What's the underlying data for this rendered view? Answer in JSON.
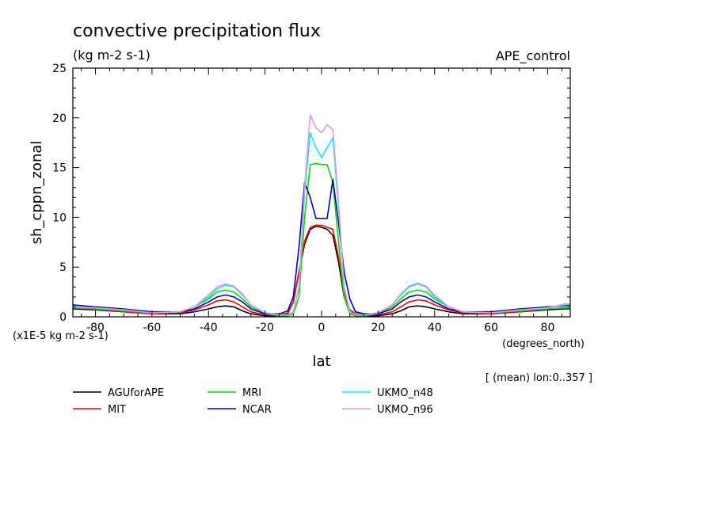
{
  "chart_data": {
    "type": "line",
    "title": "convective precipitation flux",
    "subtitle": "(kg m-2 s-1)",
    "dataset": "APE_control",
    "ylabel": "sh_cppn_zonal",
    "yscale_note": "(x1E-5 kg m-2 s-1)",
    "xlabel": "lat",
    "xunits": "(degrees_north)",
    "footnote": "[ (mean) lon:0..357 ]",
    "xlim": [
      -88,
      88
    ],
    "ylim": [
      0,
      25
    ],
    "xticks": [
      "-80",
      "-60",
      "-40",
      "-20",
      "0",
      "20",
      "40",
      "60",
      "80"
    ],
    "xtick_values": [
      -80,
      -60,
      -40,
      -20,
      0,
      20,
      40,
      60,
      80
    ],
    "yticks": [
      "0",
      "5",
      "10",
      "15",
      "20",
      "25"
    ],
    "ytick_values": [
      0,
      5,
      10,
      15,
      20,
      25
    ],
    "grid": false,
    "legend_position": "below",
    "x": [
      -88,
      -80,
      -70,
      -60,
      -50,
      -45,
      -40,
      -37,
      -34,
      -31,
      -28,
      -25,
      -20,
      -15,
      -12,
      -10,
      -8,
      -6,
      -4,
      -2,
      0,
      2,
      4,
      6,
      8,
      10,
      12,
      15,
      20,
      25,
      28,
      31,
      34,
      37,
      40,
      45,
      50,
      60,
      70,
      80,
      86,
      88
    ],
    "series": [
      {
        "name": "AGUforAPE",
        "color": "#000000",
        "values": [
          0.8,
          0.7,
          0.5,
          0.3,
          0.3,
          0.5,
          0.8,
          1.0,
          1.1,
          1.0,
          0.6,
          0.3,
          0.1,
          0.05,
          0.3,
          1.5,
          4.5,
          7.3,
          8.8,
          9.1,
          9.0,
          8.8,
          8.2,
          5.5,
          2.0,
          0.5,
          0.1,
          0.05,
          0.1,
          0.3,
          0.6,
          1.0,
          1.1,
          1.0,
          0.8,
          0.5,
          0.3,
          0.3,
          0.5,
          0.7,
          0.8,
          0.8
        ]
      },
      {
        "name": "MIT",
        "color": "#ff0000",
        "values": [
          0.9,
          0.8,
          0.5,
          0.3,
          0.4,
          0.7,
          1.2,
          1.6,
          1.7,
          1.5,
          1.0,
          0.5,
          0.2,
          0.2,
          0.4,
          1.5,
          4.6,
          7.6,
          9.0,
          9.2,
          9.2,
          9.0,
          8.8,
          6.0,
          2.5,
          0.7,
          0.3,
          0.2,
          0.2,
          0.5,
          1.0,
          1.5,
          1.7,
          1.6,
          1.2,
          0.7,
          0.4,
          0.3,
          0.5,
          0.8,
          0.9,
          0.9
        ]
      },
      {
        "name": "MRI",
        "color": "#00dd00",
        "values": [
          0.9,
          0.8,
          0.6,
          0.4,
          0.5,
          1.0,
          1.8,
          2.5,
          2.7,
          2.5,
          1.8,
          1.0,
          0.3,
          0.1,
          0.1,
          0.3,
          2.0,
          10.0,
          15.3,
          15.4,
          15.3,
          15.3,
          13.5,
          7.5,
          2.0,
          0.3,
          0.1,
          0.1,
          0.3,
          1.0,
          1.8,
          2.5,
          2.7,
          2.5,
          1.8,
          1.0,
          0.5,
          0.4,
          0.6,
          0.8,
          0.9,
          0.9
        ]
      },
      {
        "name": "NCAR",
        "color": "#0000cc",
        "values": [
          1.2,
          1.0,
          0.8,
          0.5,
          0.5,
          0.8,
          1.5,
          2.0,
          2.2,
          2.0,
          1.5,
          0.8,
          0.3,
          0.3,
          0.6,
          2.0,
          7.0,
          13.5,
          12.0,
          9.9,
          9.9,
          9.9,
          13.8,
          9.5,
          4.5,
          1.8,
          0.5,
          0.3,
          0.3,
          0.8,
          1.5,
          2.0,
          2.2,
          2.0,
          1.5,
          0.8,
          0.5,
          0.5,
          0.8,
          1.0,
          1.1,
          1.2
        ]
      },
      {
        "name": "UKMO_n48",
        "color": "#00eeee",
        "values": [
          1.0,
          0.9,
          0.7,
          0.4,
          0.5,
          1.0,
          2.0,
          2.8,
          3.2,
          3.0,
          2.2,
          1.2,
          0.4,
          0.2,
          0.2,
          0.5,
          3.0,
          12.5,
          18.5,
          17.0,
          16.0,
          17.0,
          18.0,
          11.0,
          3.0,
          0.5,
          0.2,
          0.2,
          0.4,
          1.2,
          2.2,
          3.0,
          3.3,
          3.0,
          2.0,
          1.0,
          0.5,
          0.4,
          0.7,
          0.9,
          1.2,
          1.3
        ]
      },
      {
        "name": "UKMO_n96",
        "color": "#dd99dd",
        "values": [
          1.0,
          0.9,
          0.7,
          0.4,
          0.5,
          1.0,
          2.2,
          3.0,
          3.3,
          3.1,
          2.3,
          1.2,
          0.4,
          0.2,
          0.2,
          0.5,
          3.0,
          13.0,
          20.3,
          19.0,
          18.5,
          19.3,
          18.8,
          11.5,
          3.0,
          0.5,
          0.2,
          0.2,
          0.4,
          1.2,
          2.3,
          3.1,
          3.4,
          3.1,
          2.2,
          1.0,
          0.5,
          0.4,
          0.7,
          0.9,
          1.3,
          1.3
        ]
      }
    ]
  }
}
